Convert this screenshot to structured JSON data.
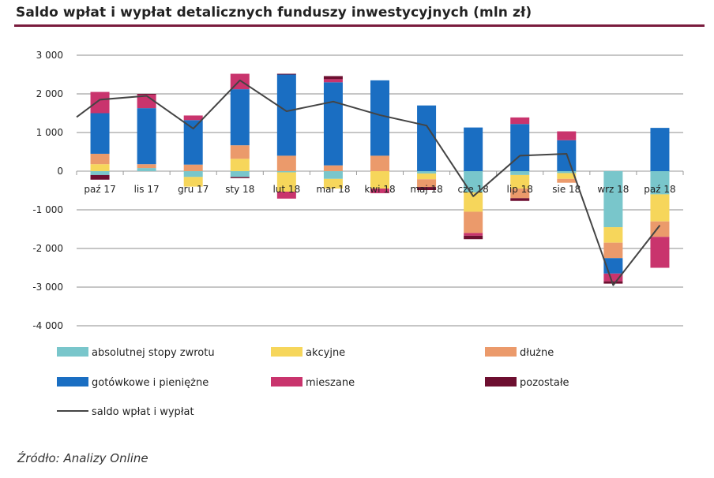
{
  "header": {
    "title": "Saldo wpłat i wypłat detalicznych funduszy inwestycyjnych (mln zł)"
  },
  "footer": {
    "source": "Źródło: Analizy Online"
  },
  "chart_data": {
    "type": "bar",
    "title": "Saldo wpłat i wypłat detalicznych funduszy inwestycyjnych (mln zł)",
    "xlabel": "",
    "ylabel": "",
    "ylim": [
      -4000,
      3000
    ],
    "yticks": [
      3000,
      2000,
      1000,
      0,
      -1000,
      -2000,
      -3000,
      -4000
    ],
    "ytick_labels": [
      "3 000",
      "2 000",
      "1 000",
      "0",
      "-1 000",
      "-2 000",
      "-3 000",
      "-4 000"
    ],
    "grid": true,
    "legend_position": "bottom",
    "categories": [
      "paź 17",
      "lis 17",
      "gru 17",
      "sty 18",
      "lut 18",
      "mar 18",
      "kwi 18",
      "maj 18",
      "cze 18",
      "lip 18",
      "sie 18",
      "wrz 18",
      "paź 18"
    ],
    "series": [
      {
        "name": "absolutnej stopy zwrotu",
        "color": "#79c6cb",
        "values": [
          -100,
          80,
          -150,
          -150,
          -30,
          -200,
          0,
          -60,
          -550,
          -100,
          -50,
          -1450,
          -600
        ]
      },
      {
        "name": "akcyjne",
        "color": "#f6d65b",
        "values": [
          180,
          0,
          -250,
          320,
          -500,
          -250,
          -450,
          -150,
          -500,
          -350,
          -150,
          -400,
          -700
        ]
      },
      {
        "name": "dłużne",
        "color": "#eb9a6b",
        "values": [
          270,
          100,
          170,
          350,
          400,
          150,
          400,
          -200,
          -550,
          -250,
          -100,
          -400,
          -400
        ]
      },
      {
        "name": "gotówkowe i pieniężne",
        "color": "#1a6ec2",
        "values": [
          1050,
          1450,
          1150,
          1450,
          2100,
          2150,
          1950,
          1700,
          1130,
          1220,
          800,
          -400,
          1120
        ]
      },
      {
        "name": "mieszane",
        "color": "#c9346d",
        "values": [
          550,
          350,
          120,
          400,
          -180,
          80,
          -120,
          0,
          -70,
          170,
          230,
          -200,
          -800
        ]
      },
      {
        "name": "pozostałe",
        "color": "#6d0f30",
        "values": [
          -120,
          20,
          0,
          -30,
          20,
          80,
          0,
          -80,
          -90,
          -70,
          0,
          -60,
          0
        ]
      }
    ],
    "line_series": {
      "name": "saldo wpłat i wypłat",
      "color": "#444444",
      "values": [
        1850,
        1950,
        1100,
        2350,
        1550,
        1800,
        1450,
        1180,
        -650,
        400,
        450,
        -2950,
        -1400
      ],
      "start_value": 1400
    }
  }
}
